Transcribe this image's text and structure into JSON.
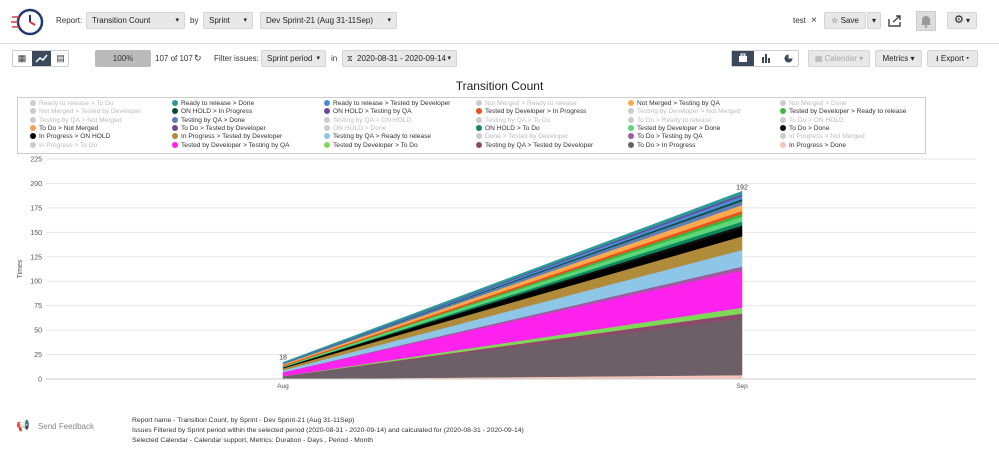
{
  "header": {
    "report_label": "Report:",
    "report_value": "Transition Count",
    "by_label": "by",
    "by_value": "Sprint",
    "sprint_value": "Dev Sprint-21 (Aug 31-11Sep)",
    "tag_value": "test",
    "save_label": "Save"
  },
  "toolbar": {
    "zoom": "100%",
    "count": "107 of 107",
    "filter_label": "Filter issues:",
    "filter_value": "Sprint period",
    "in_label": "in",
    "date_range": "2020-08-31 - 2020-09-14",
    "calendar_label": "Calendar",
    "metrics_label": "Metrics",
    "export_label": "Export"
  },
  "chart_data": {
    "type": "area",
    "title": "Transition Count",
    "ylabel": "Times",
    "xlabel": "",
    "categories": [
      "Aug",
      "Sep"
    ],
    "ylim": [
      0,
      225
    ],
    "yticks": [
      0,
      25,
      50,
      75,
      100,
      125,
      150,
      175,
      200,
      225
    ],
    "grid": true,
    "legend_position": "top",
    "top_labels": [
      {
        "category": "Aug",
        "value": 18,
        "text": "18"
      },
      {
        "category": "Sep",
        "value": 192,
        "text": "192"
      }
    ],
    "series": [
      {
        "name": "In Progress > Done",
        "color": "#f5c6b8",
        "values": [
          0,
          4
        ]
      },
      {
        "name": "To Do > In Progress",
        "color": "#6d5f68",
        "values": [
          3,
          58
        ]
      },
      {
        "name": "Tested by QA > Tested by Developer",
        "color": "#8b4a6b",
        "values": [
          0,
          5
        ]
      },
      {
        "name": "Tested by Developer > To Do",
        "color": "#7ed957",
        "values": [
          0,
          6
        ]
      },
      {
        "name": "Tested by Developer > Testing by QA",
        "color": "#ff22ee",
        "values": [
          4,
          38
        ]
      },
      {
        "name": "To Do > Testing by QA",
        "color": "#a05aa0",
        "values": [
          0,
          4
        ]
      },
      {
        "name": "Testing by QA > Ready to release",
        "color": "#8ec6e8",
        "values": [
          2,
          17
        ]
      },
      {
        "name": "In Progress > Tested by Developer",
        "color": "#b08b3a",
        "values": [
          2,
          14
        ]
      },
      {
        "name": "In Progress > ON HOLD",
        "color": "#000000",
        "values": [
          1,
          8
        ]
      },
      {
        "name": "To Do > Done",
        "color": "#111111",
        "values": [
          0,
          3
        ]
      },
      {
        "name": "ON HOLD > To Do",
        "color": "#0e8a5f",
        "values": [
          0,
          4
        ]
      },
      {
        "name": "Tested by Developer > Done",
        "color": "#5cd67a",
        "values": [
          1,
          5
        ]
      },
      {
        "name": "Tested by Developer > Ready to release",
        "color": "#3fb83f",
        "values": [
          0,
          3
        ]
      },
      {
        "name": "Tested by Developer > In Progress",
        "color": "#e8501c",
        "values": [
          1,
          3
        ]
      },
      {
        "name": "Not Merged > Testing by QA",
        "color": "#ffa94d",
        "values": [
          1,
          6
        ]
      },
      {
        "name": "Testing by QA > Done",
        "color": "#5a7fb8",
        "values": [
          1,
          4
        ]
      },
      {
        "name": "ON HOLD > In Progress",
        "color": "#0b4b3a",
        "values": [
          0,
          2
        ]
      },
      {
        "name": "Ready to release > Tested by Developer",
        "color": "#4a8bd6",
        "values": [
          0,
          3
        ]
      },
      {
        "name": "To Do > Tested by Developer",
        "color": "#6a4a9a",
        "values": [
          0,
          2
        ]
      },
      {
        "name": "Ready to release > Done",
        "color": "#2a9a9a",
        "values": [
          1,
          3
        ]
      }
    ]
  },
  "legend_items": [
    {
      "label": "Ready to release > To Do",
      "color": "#cccccc",
      "dim": true
    },
    {
      "label": "Ready to release > Done",
      "color": "#2a9a9a",
      "dim": false
    },
    {
      "label": "Ready to release > Tested by Developer",
      "color": "#4a8bd6",
      "dim": false
    },
    {
      "label": "Not Merged > Ready to release",
      "color": "#cccccc",
      "dim": true
    },
    {
      "label": "Not Merged > Testing by QA",
      "color": "#ffa94d",
      "dim": false
    },
    {
      "label": "Not Merged > Done",
      "color": "#cccccc",
      "dim": true
    },
    {
      "label": "Not Merged > Tested by Developer",
      "color": "#cccccc",
      "dim": true
    },
    {
      "label": "ON HOLD > In Progress",
      "color": "#0b4b3a",
      "dim": false
    },
    {
      "label": "ON HOLD > Testing by QA",
      "color": "#6a4a9a",
      "dim": false
    },
    {
      "label": "Tested by Developer > In Progress",
      "color": "#e8501c",
      "dim": false
    },
    {
      "label": "Testing by Developer > Not Merged",
      "color": "#cccccc",
      "dim": true
    },
    {
      "label": "Tested by Developer > Ready to release",
      "color": "#3fb83f",
      "dim": false
    },
    {
      "label": "Testing by QA > Not Merged",
      "color": "#cccccc",
      "dim": true
    },
    {
      "label": "Testing by QA > Done",
      "color": "#5a7fb8",
      "dim": false
    },
    {
      "label": "Testing by QA > ON HOLD",
      "color": "#cccccc",
      "dim": true
    },
    {
      "label": "Testing by QA > To Do",
      "color": "#cccccc",
      "dim": true
    },
    {
      "label": "To Do > Ready to release",
      "color": "#cccccc",
      "dim": true
    },
    {
      "label": "To Do > ON HOLD",
      "color": "#cccccc",
      "dim": true
    },
    {
      "label": "To Do > Not Merged",
      "color": "#f0a050",
      "dim": false
    },
    {
      "label": "To Do > Tested by Developer",
      "color": "#6a4a9a",
      "dim": false
    },
    {
      "label": "ON HOLD > Done",
      "color": "#cccccc",
      "dim": true
    },
    {
      "label": "ON HOLD > To Do",
      "color": "#0e8a5f",
      "dim": false
    },
    {
      "label": "Tested by Developer > Done",
      "color": "#5cd67a",
      "dim": false
    },
    {
      "label": "To Do > Done",
      "color": "#111111",
      "dim": false
    },
    {
      "label": "In Progress > ON HOLD",
      "color": "#000000",
      "dim": false
    },
    {
      "label": "In Progress > Tested by Developer",
      "color": "#b08b3a",
      "dim": false
    },
    {
      "label": "Testing by QA > Ready to release",
      "color": "#8ec6e8",
      "dim": false
    },
    {
      "label": "Done > Tested by Developer",
      "color": "#cccccc",
      "dim": true
    },
    {
      "label": "To Do > Testing by QA",
      "color": "#a05aa0",
      "dim": false
    },
    {
      "label": "In Progress > Not Merged",
      "color": "#cccccc",
      "dim": true
    },
    {
      "label": "In Progress > To Do",
      "color": "#cccccc",
      "dim": true
    },
    {
      "label": "Tested by Developer > Testing by QA",
      "color": "#ff22ee",
      "dim": false
    },
    {
      "label": "Tested by Developer > To Do",
      "color": "#7ed957",
      "dim": false
    },
    {
      "label": "Testing by QA > Tested by Developer",
      "color": "#8b4a6b",
      "dim": false
    },
    {
      "label": "To Do > In Progress",
      "color": "#6d5f68",
      "dim": false
    },
    {
      "label": "In Progress > Done",
      "color": "#f5c6b8",
      "dim": false
    }
  ],
  "footer": {
    "feedback": "Send Feedback",
    "line1": "Report name - Transition Count, by Sprint - Dev Sprint-21 (Aug 31-11Sep)",
    "line2": "Issues Filtered by Sprint period within the selected period (2020-08-31 - 2020-09-14) and calculated for (2020-08-31 - 2020-09-14)",
    "line3": "Selected Calendar - Calendar support, Metrics: Duration - Days , Period - Month"
  },
  "icons": [
    "clock-logo-icon",
    "grid-icon",
    "line-chart-icon",
    "table-icon",
    "refresh-icon",
    "funnel-icon",
    "star-icon",
    "share-icon",
    "bell-icon",
    "gear-icon",
    "briefcase-icon",
    "bar-chart-icon",
    "pie-chart-icon",
    "calendar-icon",
    "download-icon",
    "megaphone-icon",
    "close-icon",
    "chevron-down-icon"
  ]
}
